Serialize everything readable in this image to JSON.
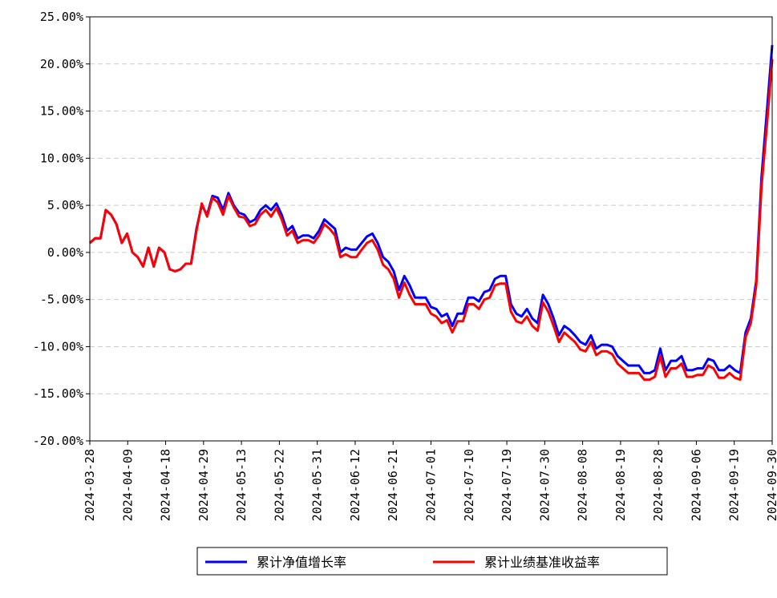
{
  "chart_data": {
    "type": "line",
    "title": "",
    "xlabel": "",
    "ylabel": "",
    "ylim": [
      -20,
      25
    ],
    "y_ticks": [
      -20,
      -15,
      -10,
      -5,
      0,
      5,
      10,
      15,
      20,
      25
    ],
    "y_tick_labels": [
      "-20.00%",
      "-15.00%",
      "-10.00%",
      "-5.00%",
      "0.00%",
      "5.00%",
      "10.00%",
      "15.00%",
      "20.00%",
      "25.00%"
    ],
    "x_tick_labels": [
      "2024-03-28",
      "2024-04-09",
      "2024-04-18",
      "2024-04-29",
      "2024-05-13",
      "2024-05-22",
      "2024-05-31",
      "2024-06-12",
      "2024-06-21",
      "2024-07-01",
      "2024-07-10",
      "2024-07-19",
      "2024-07-30",
      "2024-08-08",
      "2024-08-19",
      "2024-08-28",
      "2024-09-06",
      "2024-09-19",
      "2024-09-30"
    ],
    "grid": "horizontal-dashed",
    "legend_position": "bottom-center",
    "series": [
      {
        "name": "累计净值增长率",
        "color": "#0000ff",
        "values": [
          1.0,
          1.5,
          1.5,
          4.5,
          4.0,
          3.0,
          1.0,
          2.0,
          0.0,
          -0.5,
          -1.5,
          0.5,
          -1.5,
          0.5,
          0.0,
          -1.8,
          -2.0,
          -1.8,
          -1.2,
          -1.2,
          2.5,
          5.0,
          4.0,
          6.0,
          5.8,
          4.5,
          6.3,
          5.0,
          4.2,
          4.0,
          3.2,
          3.5,
          4.5,
          5.0,
          4.5,
          5.2,
          4.0,
          2.3,
          2.8,
          1.5,
          1.8,
          1.8,
          1.5,
          2.3,
          3.5,
          3.0,
          2.5,
          0.0,
          0.5,
          0.3,
          0.3,
          1.0,
          1.7,
          2.0,
          1.0,
          -0.5,
          -1.0,
          -2.0,
          -4.0,
          -2.5,
          -3.5,
          -4.8,
          -4.8,
          -4.8,
          -5.8,
          -6.0,
          -6.8,
          -6.5,
          -7.8,
          -6.5,
          -6.5,
          -4.8,
          -4.8,
          -5.2,
          -4.2,
          -4.0,
          -2.8,
          -2.5,
          -2.5,
          -5.5,
          -6.5,
          -6.8,
          -6.0,
          -7.0,
          -7.5,
          -4.5,
          -5.5,
          -7.0,
          -8.8,
          -7.8,
          -8.2,
          -8.8,
          -9.5,
          -9.8,
          -8.8,
          -10.2,
          -9.8,
          -9.8,
          -10.0,
          -11.0,
          -11.5,
          -12.0,
          -12.0,
          -12.0,
          -12.8,
          -12.8,
          -12.5,
          -10.2,
          -12.5,
          -11.5,
          -11.5,
          -11.0,
          -12.5,
          -12.5,
          -12.3,
          -12.3,
          -11.3,
          -11.5,
          -12.5,
          -12.5,
          -12.0,
          -12.5,
          -12.8,
          -8.5,
          -7.0,
          -3.0,
          8.0,
          15.0,
          22.0
        ]
      },
      {
        "name": "累计业绩基准收益率",
        "color": "#ff0000",
        "values": [
          1.0,
          1.5,
          1.5,
          4.5,
          4.0,
          3.0,
          1.0,
          2.0,
          0.0,
          -0.5,
          -1.5,
          0.5,
          -1.5,
          0.5,
          0.0,
          -1.8,
          -2.0,
          -1.8,
          -1.2,
          -1.2,
          2.3,
          5.2,
          3.8,
          5.8,
          5.3,
          4.0,
          6.0,
          4.8,
          3.8,
          3.7,
          2.8,
          3.0,
          4.0,
          4.5,
          3.8,
          4.7,
          3.5,
          1.8,
          2.3,
          1.0,
          1.3,
          1.3,
          1.0,
          1.8,
          3.0,
          2.5,
          1.8,
          -0.5,
          -0.2,
          -0.5,
          -0.5,
          0.3,
          1.0,
          1.3,
          0.3,
          -1.3,
          -1.8,
          -2.8,
          -4.8,
          -3.2,
          -4.5,
          -5.5,
          -5.5,
          -5.5,
          -6.5,
          -6.8,
          -7.5,
          -7.2,
          -8.5,
          -7.3,
          -7.3,
          -5.5,
          -5.5,
          -6.0,
          -5.0,
          -4.8,
          -3.5,
          -3.3,
          -3.3,
          -6.3,
          -7.3,
          -7.5,
          -6.8,
          -7.8,
          -8.3,
          -5.3,
          -6.3,
          -7.8,
          -9.5,
          -8.5,
          -9.0,
          -9.5,
          -10.3,
          -10.5,
          -9.5,
          -10.9,
          -10.5,
          -10.5,
          -10.8,
          -11.8,
          -12.3,
          -12.8,
          -12.8,
          -12.8,
          -13.5,
          -13.5,
          -13.2,
          -11.0,
          -13.2,
          -12.3,
          -12.3,
          -11.8,
          -13.2,
          -13.2,
          -13.0,
          -13.0,
          -12.0,
          -12.3,
          -13.3,
          -13.3,
          -12.8,
          -13.3,
          -13.5,
          -9.0,
          -7.5,
          -3.5,
          7.0,
          13.5,
          20.5
        ]
      }
    ]
  }
}
